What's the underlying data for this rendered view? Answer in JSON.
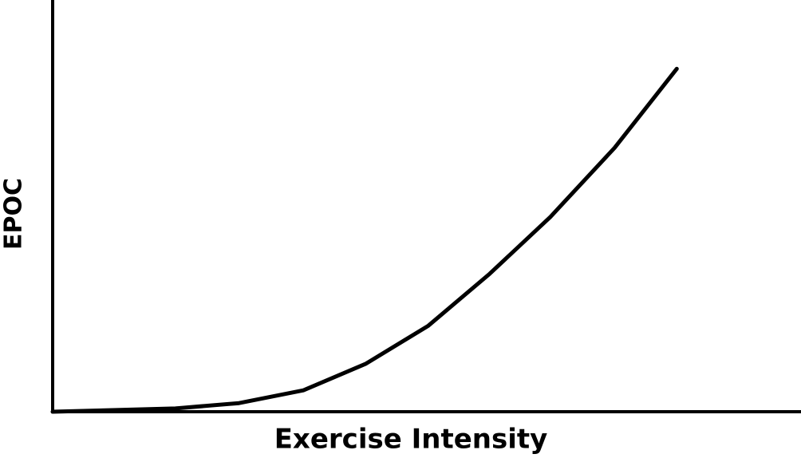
{
  "chart_data": {
    "type": "line",
    "x_label": "Exercise Intensity",
    "y_label": "EPOC",
    "x": [
      0,
      16.4,
      24.9,
      33.5,
      41.8,
      50.2,
      58.4,
      66.5,
      75.1,
      83.4
    ],
    "series": [
      {
        "color": "#000000",
        "values": [
          0,
          0.8,
          2.1,
          5.2,
          11.6,
          20.9,
          33.5,
          47.3,
          64.1,
          83.3
        ]
      }
    ],
    "xlim": [
      0,
      100
    ],
    "ylim": [
      0,
      100
    ],
    "grid": false
  }
}
